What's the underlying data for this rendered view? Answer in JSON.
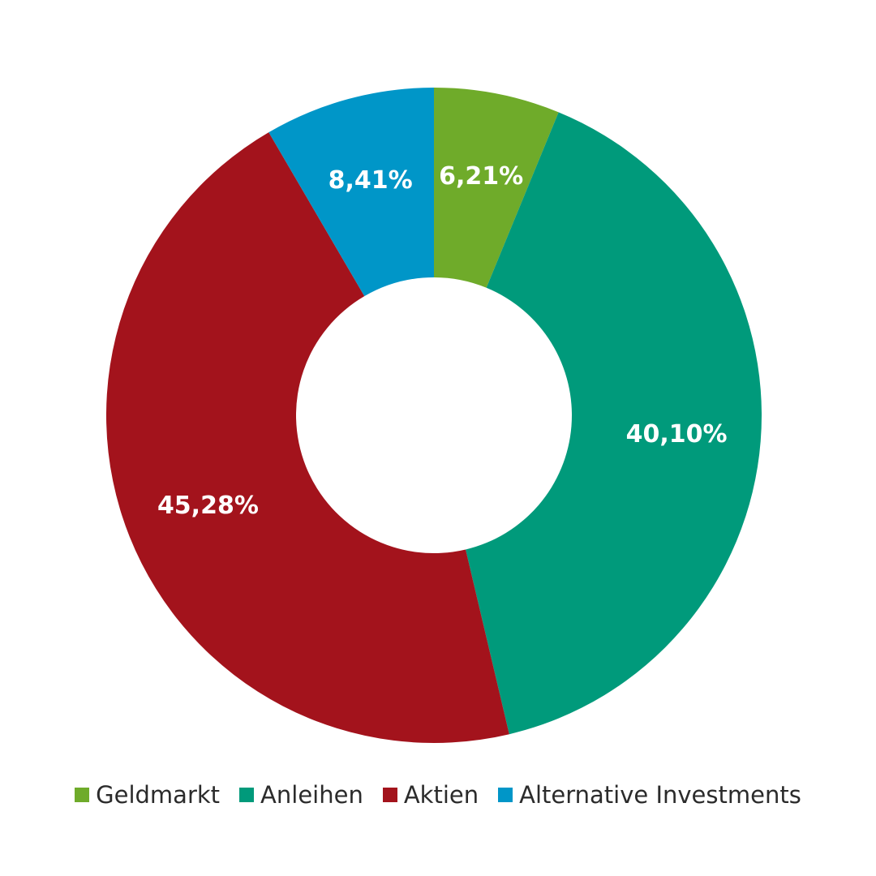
{
  "chart_data": {
    "type": "pie",
    "variant": "donut",
    "title": "",
    "slices": [
      {
        "label": "Geldmarkt",
        "value": 6.21,
        "display": "6,21%",
        "color": "#6fab2a"
      },
      {
        "label": "Anleihen",
        "value": 40.1,
        "display": "40,10%",
        "color": "#009a7b"
      },
      {
        "label": "Aktien",
        "value": 45.28,
        "display": "45,28%",
        "color": "#a3131c"
      },
      {
        "label": "Alternative Investments",
        "value": 8.41,
        "display": "8,41%",
        "color": "#0096c8"
      }
    ],
    "start": "top",
    "direction": "clockwise",
    "legend_position": "bottom"
  }
}
